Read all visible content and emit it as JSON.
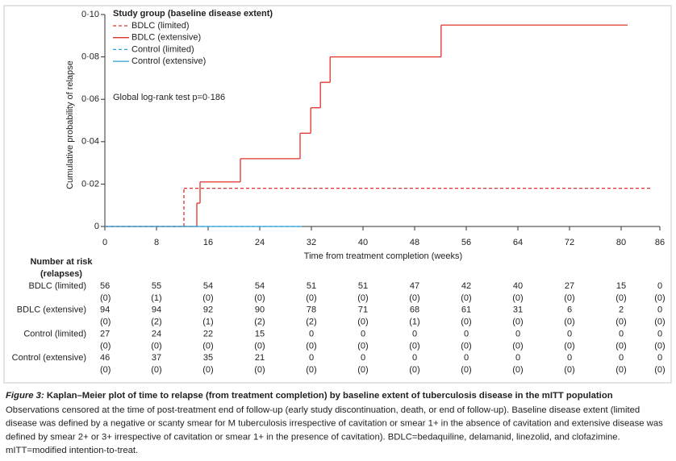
{
  "chart_data": {
    "type": "step",
    "legend_title": "Study group (baseline disease extent)",
    "legend": "upper left",
    "annotation": "Global log-rank test p=0·186",
    "xlabel": "Time from treatment completion (weeks)",
    "ylabel": "Cumulative probability of relapse",
    "xlim": [
      0,
      86
    ],
    "xticks": [
      0,
      8,
      16,
      24,
      32,
      40,
      48,
      56,
      64,
      72,
      80,
      86
    ],
    "ylim": [
      0,
      0.1
    ],
    "yticks": [
      0,
      {
        "value": 0.02,
        "label": "0·02"
      },
      {
        "value": 0.04,
        "label": "0·04"
      },
      {
        "value": 0.06,
        "label": "0·06"
      },
      {
        "value": 0.08,
        "label": "0·08"
      },
      {
        "value": 0.1,
        "label": "0·10"
      }
    ],
    "series": [
      {
        "name": "BDLC (limited)",
        "color": "#e0312a",
        "dashed": true,
        "x": [
          0,
          12.25,
          84.5
        ],
        "values": [
          0,
          0.018,
          0.018
        ]
      },
      {
        "name": "BDLC (extensive)",
        "color": "#e0312a",
        "dashed": false,
        "x": [
          0,
          14.25,
          14.75,
          21,
          30.25,
          31.9,
          33.4,
          34.9,
          52.1,
          81
        ],
        "values": [
          0,
          0.011,
          0.021,
          0.032,
          0.044,
          0.056,
          0.068,
          0.08,
          0.095,
          0.095
        ]
      },
      {
        "name": "Control (limited)",
        "color": "#2a9fd6",
        "dashed": true,
        "x": [
          0,
          30.5
        ],
        "values": [
          0,
          0
        ]
      },
      {
        "name": "Control (extensive)",
        "color": "#2a9fd6",
        "dashed": false,
        "x": [
          0,
          30.5
        ],
        "values": [
          0,
          0
        ]
      }
    ]
  },
  "risk_table": {
    "header": [
      "Number at risk",
      "(relapses)"
    ],
    "rows": [
      {
        "label": "BDLC (limited)",
        "at_risk": [
          56,
          55,
          54,
          54,
          51,
          51,
          47,
          42,
          40,
          27,
          15,
          0
        ],
        "relapses": [
          "(0)",
          "(1)",
          "(0)",
          "(0)",
          "(0)",
          "(0)",
          "(0)",
          "(0)",
          "(0)",
          "(0)",
          "(0)",
          "(0)"
        ]
      },
      {
        "label": "BDLC (extensive)",
        "at_risk": [
          94,
          94,
          92,
          90,
          78,
          71,
          68,
          61,
          31,
          6,
          2,
          0
        ],
        "relapses": [
          "(0)",
          "(2)",
          "(1)",
          "(2)",
          "(2)",
          "(0)",
          "(1)",
          "(0)",
          "(0)",
          "(0)",
          "(0)",
          "(0)"
        ]
      },
      {
        "label": "Control (limited)",
        "at_risk": [
          27,
          24,
          22,
          15,
          0,
          0,
          0,
          0,
          0,
          0,
          0,
          0
        ],
        "relapses": [
          "(0)",
          "(0)",
          "(0)",
          "(0)",
          "(0)",
          "(0)",
          "(0)",
          "(0)",
          "(0)",
          "(0)",
          "(0)",
          "(0)"
        ]
      },
      {
        "label": "Control (extensive)",
        "at_risk": [
          46,
          37,
          35,
          21,
          0,
          0,
          0,
          0,
          0,
          0,
          0,
          0
        ],
        "relapses": [
          "(0)",
          "(0)",
          "(0)",
          "(0)",
          "(0)",
          "(0)",
          "(0)",
          "(0)",
          "(0)",
          "(0)",
          "(0)",
          "(0)"
        ]
      }
    ]
  },
  "caption": {
    "label": "Figure 3:",
    "title": " Kaplan–Meier plot of time to relapse (from treatment completion) by baseline extent of tuberculosis disease in the mITT population",
    "lines": [
      "Observations censored at the time of post-treatment end of follow-up (early study discontinuation, death, or end of follow-up). Baseline disease extent (limited",
      "disease was defined by a negative or scanty smear for M tuberculosis irrespective of cavitation or smear 1+ in the absence of cavitation and extensive disease was",
      "defined by smear 2+ or 3+ irrespective of cavitation or smear 1+ in the presence of cavitation). BDLC=bedaquiline, delamanid, linezolid, and clofazimine.",
      "mITT=modified intention-to-treat."
    ]
  }
}
